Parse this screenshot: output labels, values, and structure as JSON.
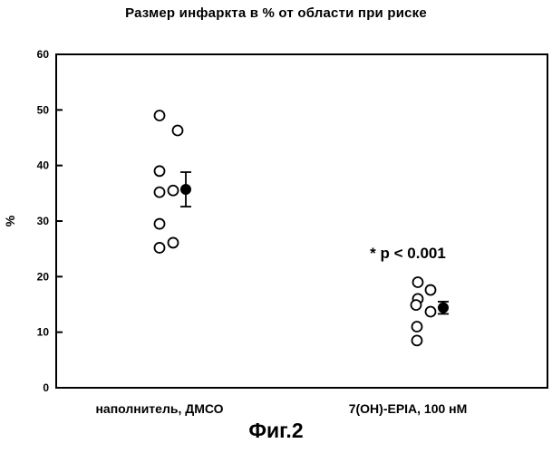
{
  "chart_data": {
    "type": "scatter",
    "title": "Размер инфаркта в % от области при риске",
    "ylabel": "%",
    "xlabel": "",
    "ylim": [
      0,
      60
    ],
    "yticks": [
      0,
      10,
      20,
      30,
      40,
      50,
      60
    ],
    "categories": [
      "наполнитель, ДМСО",
      "7(OH)-EPIA, 100 нМ"
    ],
    "groups": [
      {
        "category": "наполнитель, ДМСО",
        "points": [
          49.0,
          46.3,
          39.0,
          35.2,
          35.5,
          29.5,
          25.2,
          26.1
        ],
        "mean": 35.7,
        "error": [
          32.6,
          38.8
        ]
      },
      {
        "category": "7(OH)-EPIA, 100 нМ",
        "points": [
          19.0,
          17.6,
          16.0,
          14.9,
          13.7,
          11.0,
          8.5
        ],
        "mean": 14.4,
        "error": [
          13.3,
          15.5
        ]
      }
    ],
    "annotation": "* p < 0.001",
    "grid": false,
    "legend": "none"
  },
  "caption": "Фиг.2"
}
